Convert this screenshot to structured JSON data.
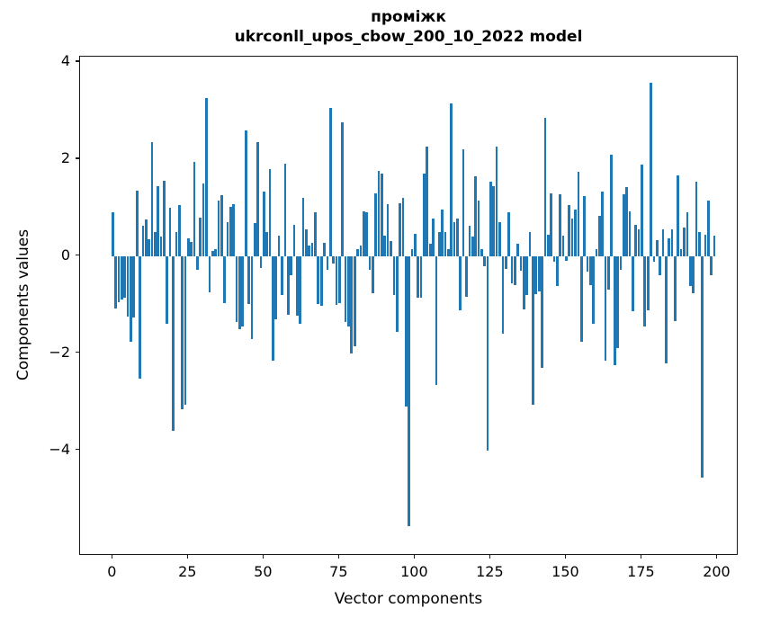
{
  "figure": {
    "title_line1": "проміжк",
    "title_line2": "ukrconll_upos_cbow_200_10_2022 model"
  },
  "chart_data": {
    "type": "bar",
    "title": "проміжк\nukrconll_upos_cbow_200_10_2022 model",
    "xlabel": "Vector components",
    "ylabel": "Components values",
    "bar_color": "#1f77b4",
    "grid": false,
    "legend": null,
    "n_components": 200,
    "xlim": [
      -10.8,
      207.0
    ],
    "ylim": [
      -6.17,
      4.11
    ],
    "x_ticks": [
      {
        "value": 0,
        "label": "0"
      },
      {
        "value": 25,
        "label": "25"
      },
      {
        "value": 50,
        "label": "50"
      },
      {
        "value": 75,
        "label": "75"
      },
      {
        "value": 100,
        "label": "100"
      },
      {
        "value": 125,
        "label": "125"
      },
      {
        "value": 150,
        "label": "150"
      },
      {
        "value": 175,
        "label": "175"
      },
      {
        "value": 200,
        "label": "200"
      }
    ],
    "y_ticks": [
      {
        "value": 4,
        "label": "4"
      },
      {
        "value": 2,
        "label": "2"
      },
      {
        "value": 0,
        "label": "0"
      },
      {
        "value": -2,
        "label": "−2"
      },
      {
        "value": -4,
        "label": "−4"
      }
    ],
    "values": [
      0.9,
      -1.07,
      -0.95,
      -0.9,
      -0.85,
      -1.25,
      -1.76,
      -1.26,
      1.35,
      -2.52,
      0.62,
      0.75,
      0.35,
      2.35,
      0.5,
      1.45,
      0.4,
      1.55,
      -1.4,
      1.0,
      -3.6,
      0.5,
      1.05,
      -3.15,
      -3.05,
      0.37,
      0.3,
      1.95,
      -0.28,
      0.8,
      1.5,
      3.25,
      -0.74,
      0.1,
      0.15,
      1.15,
      1.25,
      -0.96,
      0.71,
      1.02,
      1.08,
      -1.36,
      -1.51,
      -1.45,
      2.6,
      -0.99,
      -1.7,
      0.68,
      2.35,
      -0.25,
      1.33,
      0.5,
      1.79,
      -2.15,
      -1.3,
      0.43,
      -0.8,
      1.91,
      -1.2,
      -0.4,
      0.65,
      -1.23,
      -1.4,
      1.2,
      0.56,
      0.22,
      0.28,
      0.9,
      -0.99,
      -1.02,
      0.28,
      -0.28,
      3.05,
      -0.15,
      -1.0,
      -0.96,
      2.75,
      -1.36,
      -1.45,
      -2.0,
      -1.85,
      0.15,
      0.22,
      0.93,
      0.9,
      -0.28,
      -0.77,
      1.3,
      1.75,
      1.7,
      0.43,
      1.08,
      0.31,
      -0.8,
      -1.55,
      1.1,
      1.2,
      -3.1,
      -5.55,
      0.15,
      0.46,
      -0.85,
      -0.86,
      1.7,
      2.25,
      0.25,
      0.77,
      -2.65,
      0.49,
      0.96,
      0.49,
      0.15,
      3.15,
      0.71,
      0.77,
      -1.11,
      2.2,
      -0.83,
      0.62,
      0.4,
      1.64,
      1.14,
      0.15,
      -0.2,
      -4.0,
      1.54,
      1.45,
      2.25,
      0.7,
      -1.6,
      -0.27,
      0.9,
      -0.56,
      -0.6,
      0.25,
      -0.3,
      -1.1,
      -0.8,
      0.5,
      -3.05,
      -0.78,
      -0.72,
      -2.3,
      2.85,
      0.45,
      1.3,
      -0.12,
      -0.62,
      1.27,
      0.43,
      -0.1,
      1.05,
      0.77,
      0.96,
      1.73,
      -1.76,
      1.23,
      -0.31,
      -0.59,
      -1.39,
      0.15,
      0.83,
      1.33,
      -2.16,
      -0.68,
      2.1,
      -2.25,
      -1.9,
      -0.28,
      1.27,
      1.42,
      0.93,
      -1.14,
      0.65,
      0.56,
      1.88,
      -1.45,
      -1.11,
      3.58,
      -0.12,
      0.34,
      -0.4,
      0.56,
      -2.2,
      0.37,
      0.56,
      -1.33,
      1.67,
      0.15,
      0.59,
      0.9,
      -0.62,
      -0.77,
      1.54,
      0.5,
      -4.55,
      0.45,
      1.15,
      -0.4,
      0.42
    ]
  }
}
